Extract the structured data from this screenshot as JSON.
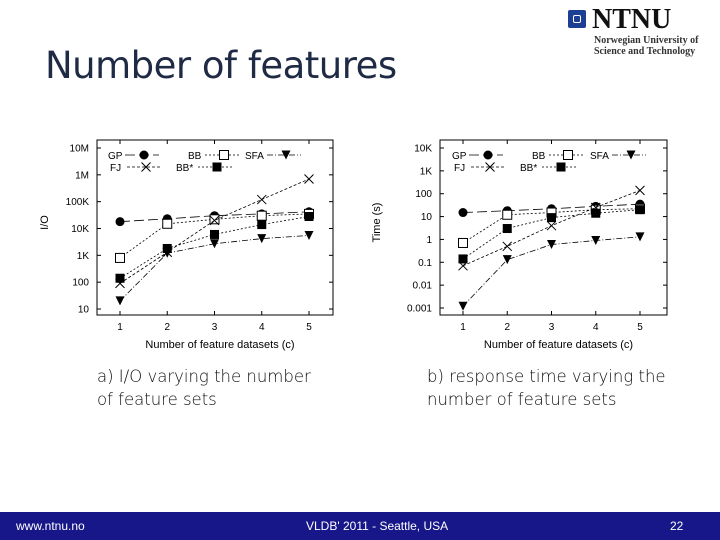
{
  "slide": {
    "title": "Number of features",
    "logo": {
      "name": "NTNU",
      "line1": "Norwegian University of",
      "line2": "Science and Technology"
    },
    "caption_a": [
      "a) I/O varying the number",
      "of feature sets"
    ],
    "caption_b": [
      "b) response time varying the",
      "number of feature sets"
    ],
    "footer": {
      "url": "www.ntnu.no",
      "venue": "VLDB' 2011 - Seattle, USA",
      "page": "22"
    },
    "colors": {
      "title": "#1f2a44",
      "footer_bg": "#17178a",
      "logo_blue": "#1c3f94"
    }
  },
  "chart_data": [
    {
      "type": "line",
      "title": "",
      "xlabel": "Number of feature datasets (c)",
      "ylabel": "I/O",
      "yscale": "log",
      "ylim": [
        10,
        10000000
      ],
      "x": [
        1,
        2,
        3,
        4,
        5
      ],
      "yticks": [
        10,
        100,
        1000,
        10000,
        100000,
        1000000,
        10000000
      ],
      "ytick_labels": [
        "10",
        "100",
        "1K",
        "10K",
        "100K",
        "1M",
        "10M"
      ],
      "xtick_labels": [
        "1",
        "2",
        "3",
        "4",
        "5"
      ],
      "legend": "top-inside",
      "series": [
        {
          "name": "GP",
          "marker": "circle",
          "values": [
            18000,
            23000,
            30000,
            35000,
            42000
          ]
        },
        {
          "name": "BB",
          "marker": "open-square",
          "values": [
            800,
            15000,
            22000,
            30000,
            35000
          ]
        },
        {
          "name": "SFA",
          "marker": "triangle-down",
          "values": [
            20,
            1200,
            2700,
            4200,
            5500
          ]
        },
        {
          "name": "FJ",
          "marker": "x",
          "values": [
            90,
            1300,
            20000,
            120000,
            700000
          ]
        },
        {
          "name": "BB*",
          "marker": "square",
          "values": [
            140,
            1800,
            6000,
            14000,
            28000
          ]
        }
      ]
    },
    {
      "type": "line",
      "title": "",
      "xlabel": "Number of feature datasets (c)",
      "ylabel": "Time (s)",
      "yscale": "log",
      "ylim": [
        0.001,
        10000
      ],
      "x": [
        1,
        2,
        3,
        4,
        5
      ],
      "yticks": [
        0.001,
        0.01,
        0.1,
        1,
        10,
        100,
        1000,
        10000
      ],
      "ytick_labels": [
        "0.001",
        "0.01",
        "0.1",
        "1",
        "10",
        "100",
        "1K",
        "10K"
      ],
      "xtick_labels": [
        "1",
        "2",
        "3",
        "4",
        "5"
      ],
      "legend": "top-inside",
      "series": [
        {
          "name": "GP",
          "marker": "circle",
          "values": [
            15,
            18,
            22,
            28,
            35
          ]
        },
        {
          "name": "BB",
          "marker": "open-square",
          "values": [
            0.7,
            12,
            15,
            20,
            22
          ]
        },
        {
          "name": "SFA",
          "marker": "triangle-down",
          "values": [
            0.0012,
            0.13,
            0.6,
            0.9,
            1.3
          ]
        },
        {
          "name": "FJ",
          "marker": "x",
          "values": [
            0.07,
            0.5,
            4,
            25,
            140
          ]
        },
        {
          "name": "BB*",
          "marker": "square",
          "values": [
            0.14,
            3,
            9,
            14,
            20
          ]
        }
      ]
    }
  ]
}
